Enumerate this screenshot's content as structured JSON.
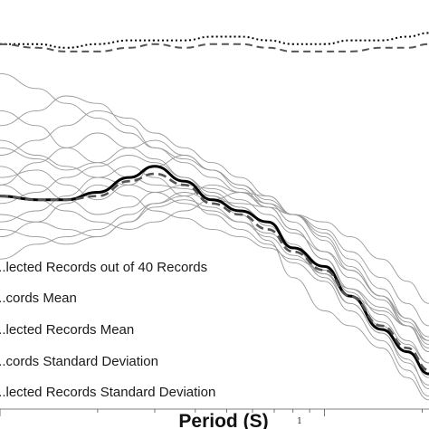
{
  "chart_data": {
    "type": "line",
    "xlabel": "Period (S)",
    "x_scale": "log",
    "x_tick_labels": [
      "1"
    ],
    "grid": false,
    "legend_placement": "bottom-left",
    "legend": [
      {
        "name": "...lected Records out of 40 Records",
        "style": "thin gray solid"
      },
      {
        "name": "...cords Mean",
        "style": "thick black solid"
      },
      {
        "name": "...lected Records Mean",
        "style": "thick gray dashed"
      },
      {
        "name": "...cords Standard Deviation",
        "style": "black dotted"
      },
      {
        "name": "...lected Records Standard Deviation",
        "style": "gray dashed"
      }
    ],
    "x": [
      0.1,
      0.13,
      0.16,
      0.2,
      0.25,
      0.3,
      0.37,
      0.45,
      0.55,
      0.67,
      0.8,
      1.0,
      1.2,
      1.5,
      1.8,
      2.1
    ],
    "series": [
      {
        "values": [
          0.47,
          0.46,
          0.46,
          0.48,
          0.52,
          0.55,
          0.51,
          0.46,
          0.43,
          0.4,
          0.33,
          0.28,
          0.2,
          0.11,
          0.05,
          -0.01
        ]
      },
      {
        "values": [
          0.47,
          0.46,
          0.46,
          0.47,
          0.51,
          0.53,
          0.5,
          0.45,
          0.42,
          0.38,
          0.32,
          0.27,
          0.2,
          0.12,
          0.06,
          0.0
        ]
      },
      {
        "values": [
          0.88,
          0.88,
          0.87,
          0.88,
          0.89,
          0.89,
          0.89,
          0.9,
          0.9,
          0.89,
          0.88,
          0.88,
          0.89,
          0.89,
          0.9,
          0.91
        ]
      },
      {
        "values": [
          0.88,
          0.87,
          0.86,
          0.86,
          0.87,
          0.88,
          0.87,
          0.88,
          0.88,
          0.87,
          0.86,
          0.86,
          0.86,
          0.87,
          0.87,
          0.88
        ]
      },
      {
        "values": [
          0.5,
          0.56,
          0.6,
          0.64,
          0.6,
          0.57,
          0.52,
          0.47,
          0.42,
          0.35,
          0.25,
          0.16,
          0.12,
          0.06,
          -0.02,
          -0.08
        ]
      },
      {
        "values": [
          0.62,
          0.58,
          0.55,
          0.52,
          0.5,
          0.48,
          0.45,
          0.43,
          0.4,
          0.37,
          0.33,
          0.25,
          0.18,
          0.1,
          0.02,
          -0.04
        ]
      },
      {
        "values": [
          0.42,
          0.4,
          0.45,
          0.5,
          0.47,
          0.43,
          0.41,
          0.38,
          0.36,
          0.33,
          0.3,
          0.27,
          0.22,
          0.17,
          0.12,
          0.08
        ]
      },
      {
        "values": [
          0.36,
          0.4,
          0.38,
          0.36,
          0.4,
          0.45,
          0.48,
          0.46,
          0.45,
          0.44,
          0.42,
          0.36,
          0.28,
          0.2,
          0.14,
          0.09
        ]
      },
      {
        "values": [
          0.7,
          0.66,
          0.6,
          0.56,
          0.52,
          0.5,
          0.49,
          0.47,
          0.44,
          0.4,
          0.34,
          0.26,
          0.2,
          0.16,
          0.12,
          0.06
        ]
      },
      {
        "values": [
          0.55,
          0.5,
          0.46,
          0.42,
          0.44,
          0.48,
          0.5,
          0.49,
          0.46,
          0.42,
          0.37,
          0.32,
          0.27,
          0.2,
          0.12,
          0.05
        ]
      },
      {
        "values": [
          0.3,
          0.34,
          0.36,
          0.38,
          0.42,
          0.45,
          0.47,
          0.5,
          0.48,
          0.44,
          0.38,
          0.3,
          0.21,
          0.13,
          0.07,
          0.02
        ]
      },
      {
        "values": [
          0.58,
          0.62,
          0.66,
          0.7,
          0.68,
          0.64,
          0.6,
          0.56,
          0.52,
          0.47,
          0.42,
          0.37,
          0.3,
          0.22,
          0.14,
          0.08
        ]
      },
      {
        "values": [
          0.45,
          0.48,
          0.52,
          0.55,
          0.58,
          0.56,
          0.52,
          0.48,
          0.44,
          0.39,
          0.33,
          0.26,
          0.18,
          0.1,
          0.03,
          -0.05
        ]
      },
      {
        "values": [
          0.5,
          0.46,
          0.43,
          0.4,
          0.38,
          0.4,
          0.43,
          0.46,
          0.48,
          0.47,
          0.42,
          0.35,
          0.27,
          0.2,
          0.13,
          0.07
        ]
      },
      {
        "values": [
          0.66,
          0.7,
          0.74,
          0.72,
          0.66,
          0.6,
          0.56,
          0.52,
          0.48,
          0.45,
          0.42,
          0.38,
          0.32,
          0.25,
          0.18,
          0.12
        ]
      },
      {
        "values": [
          0.38,
          0.36,
          0.34,
          0.36,
          0.4,
          0.44,
          0.46,
          0.44,
          0.4,
          0.36,
          0.31,
          0.26,
          0.2,
          0.12,
          0.05,
          -0.02
        ]
      },
      {
        "values": [
          0.8,
          0.76,
          0.72,
          0.68,
          0.64,
          0.6,
          0.57,
          0.54,
          0.5,
          0.46,
          0.42,
          0.4,
          0.36,
          0.3,
          0.24,
          0.18
        ]
      },
      {
        "values": [
          0.52,
          0.54,
          0.5,
          0.46,
          0.5,
          0.55,
          0.58,
          0.54,
          0.49,
          0.44,
          0.38,
          0.3,
          0.22,
          0.15,
          0.08,
          0.02
        ]
      },
      {
        "values": [
          0.4,
          0.43,
          0.47,
          0.52,
          0.55,
          0.52,
          0.47,
          0.42,
          0.38,
          0.34,
          0.29,
          0.24,
          0.16,
          0.08,
          0.0,
          -0.07
        ]
      },
      {
        "values": [
          0.6,
          0.57,
          0.54,
          0.56,
          0.6,
          0.62,
          0.58,
          0.54,
          0.5,
          0.45,
          0.4,
          0.32,
          0.25,
          0.19,
          0.12,
          0.05
        ]
      }
    ]
  }
}
